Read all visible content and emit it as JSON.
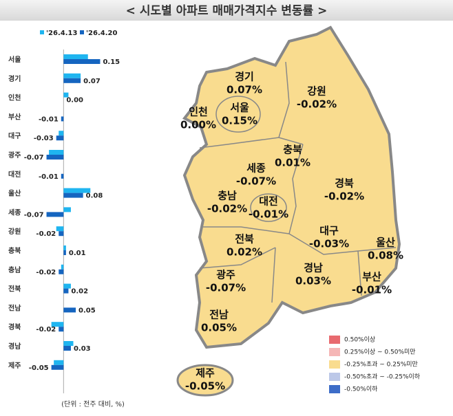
{
  "chart_data": {
    "type": "hbar",
    "title": "< 시도별 아파트 매매가격지수 변동률 >",
    "categories": [
      "서울",
      "경기",
      "인천",
      "부산",
      "대구",
      "광주",
      "대전",
      "울산",
      "세종",
      "강원",
      "충북",
      "충남",
      "전북",
      "전남",
      "경북",
      "경남",
      "제주"
    ],
    "series": [
      {
        "name": "'26.4.13",
        "color": "#1fb5f0",
        "values": [
          0.1,
          0.07,
          0.02,
          0.0,
          -0.02,
          -0.06,
          0.0,
          0.11,
          0.03,
          -0.03,
          0.01,
          -0.01,
          0.03,
          0.0,
          -0.05,
          0.04,
          -0.04
        ]
      },
      {
        "name": "'26.4.20",
        "color": "#1565c0",
        "values": [
          0.15,
          0.07,
          0.0,
          -0.01,
          -0.03,
          -0.07,
          -0.01,
          0.08,
          -0.07,
          -0.02,
          0.01,
          -0.02,
          0.02,
          0.05,
          -0.02,
          0.03,
          -0.05
        ],
        "value_labels": [
          "0.15",
          "0.07",
          "0.00",
          "-0.01",
          "-0.03",
          "-0.07",
          "-0.01",
          "0.08",
          "-0.07",
          "-0.02",
          "0.01",
          "-0.02",
          "0.02",
          "0.05",
          "-0.02",
          "0.03",
          "-0.05"
        ]
      }
    ],
    "xlim": [
      -0.08,
      0.16
    ],
    "unit_note": "(단위 : 전주 대비, %)"
  },
  "map": {
    "regions": [
      {
        "name": "경기",
        "change": "0.07%"
      },
      {
        "name": "서울",
        "change": "0.15%"
      },
      {
        "name": "인천",
        "change": "0.00%"
      },
      {
        "name": "강원",
        "change": "-0.02%"
      },
      {
        "name": "충북",
        "change": "0.01%"
      },
      {
        "name": "세종",
        "change": "-0.07%"
      },
      {
        "name": "경북",
        "change": "-0.02%"
      },
      {
        "name": "충남",
        "change": "-0.02%"
      },
      {
        "name": "대전",
        "change": "-0.01%"
      },
      {
        "name": "대구",
        "change": "-0.03%"
      },
      {
        "name": "울산",
        "change": "0.08%"
      },
      {
        "name": "전북",
        "change": "0.02%"
      },
      {
        "name": "경남",
        "change": "0.03%"
      },
      {
        "name": "부산",
        "change": "-0.01%"
      },
      {
        "name": "광주",
        "change": "-0.07%"
      },
      {
        "name": "전남",
        "change": "0.05%"
      },
      {
        "name": "제주",
        "change": "-0.05%"
      }
    ],
    "legend": [
      {
        "label": "0.50%이상",
        "color": "#e86a6f"
      },
      {
        "label": "0.25%이상 ~ 0.50%미만",
        "color": "#f5b6b6"
      },
      {
        "label": "-0.25%초과 ~ 0.25%미만",
        "color": "#f9dc8f"
      },
      {
        "label": "-0.50%초과 ~ -0.25%이하",
        "color": "#bcc8e8"
      },
      {
        "label": "-0.50%이하",
        "color": "#3d6dc8"
      }
    ]
  }
}
